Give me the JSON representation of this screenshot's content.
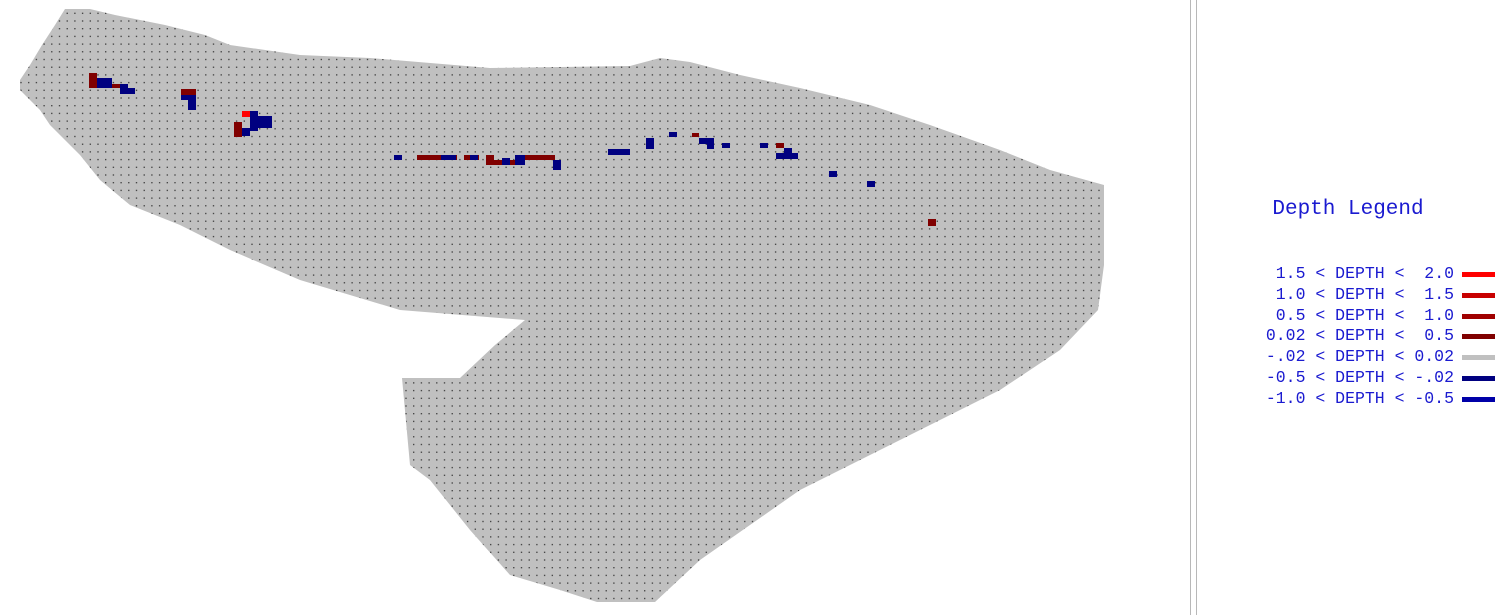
{
  "legend": {
    "title": "Depth Legend",
    "items": [
      {
        "label": "1.5 < DEPTH <  2.0",
        "color": "#ff0000"
      },
      {
        "label": "1.0 < DEPTH <  1.5",
        "color": "#c80000"
      },
      {
        "label": "0.5 < DEPTH <  1.0",
        "color": "#a00000"
      },
      {
        "label": "0.02 < DEPTH <  0.5",
        "color": "#800000"
      },
      {
        "label": "-.02 < DEPTH < 0.02",
        "color": "#c0c0c0"
      },
      {
        "label": "-0.5 < DEPTH < -.02",
        "color": "#000080"
      },
      {
        "label": "-1.0 < DEPTH < -0.5",
        "color": "#0000a8"
      }
    ]
  }
}
